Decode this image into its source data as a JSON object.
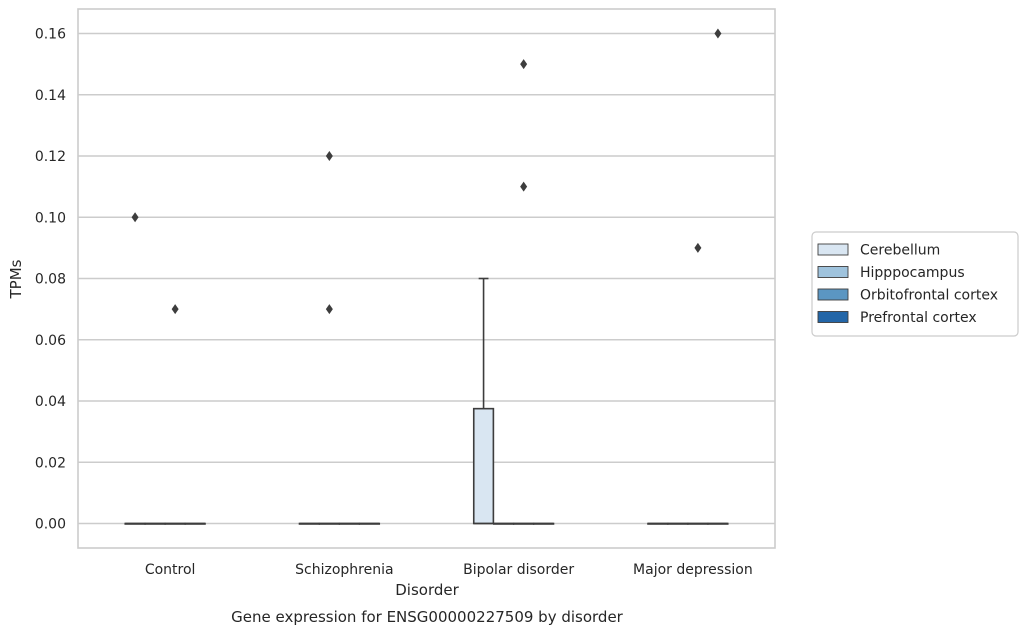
{
  "chart_data": {
    "type": "boxplot",
    "title": "Gene expression for ENSG00000227509 by disorder",
    "xlabel": "Disorder",
    "ylabel": "TPMs",
    "ylim": [
      -0.008,
      0.168
    ],
    "yticks": [
      0.0,
      0.02,
      0.04,
      0.06,
      0.08,
      0.1,
      0.12,
      0.14,
      0.16
    ],
    "ytick_labels": [
      "0.00",
      "0.02",
      "0.04",
      "0.06",
      "0.08",
      "0.10",
      "0.12",
      "0.14",
      "0.16"
    ],
    "grid": true,
    "legend_position": "right",
    "categories": [
      "Control",
      "Schizophrenia",
      "Bipolar disorder",
      "Major depression"
    ],
    "series": [
      {
        "name": "Cerebellum",
        "color": "#d9e6f2",
        "boxes": [
          {
            "q1": 0.0,
            "median": 0.0,
            "q3": 0.0,
            "whisker_low": 0.0,
            "whisker_high": 0.0,
            "outliers": [
              0.1
            ]
          },
          {
            "q1": 0.0,
            "median": 0.0,
            "q3": 0.0,
            "whisker_low": 0.0,
            "whisker_high": 0.0,
            "outliers": []
          },
          {
            "q1": 0.0,
            "median": 0.0,
            "q3": 0.0375,
            "whisker_low": 0.0,
            "whisker_high": 0.08,
            "outliers": []
          },
          {
            "q1": 0.0,
            "median": 0.0,
            "q3": 0.0,
            "whisker_low": 0.0,
            "whisker_high": 0.0,
            "outliers": []
          }
        ]
      },
      {
        "name": "Hipppocampus",
        "color": "#9fc3dd",
        "boxes": [
          {
            "q1": 0.0,
            "median": 0.0,
            "q3": 0.0,
            "whisker_low": 0.0,
            "whisker_high": 0.0,
            "outliers": []
          },
          {
            "q1": 0.0,
            "median": 0.0,
            "q3": 0.0,
            "whisker_low": 0.0,
            "whisker_high": 0.0,
            "outliers": [
              0.12,
              0.07
            ]
          },
          {
            "q1": 0.0,
            "median": 0.0,
            "q3": 0.0,
            "whisker_low": 0.0,
            "whisker_high": 0.0,
            "outliers": []
          },
          {
            "q1": 0.0,
            "median": 0.0,
            "q3": 0.0,
            "whisker_low": 0.0,
            "whisker_high": 0.0,
            "outliers": []
          }
        ]
      },
      {
        "name": "Orbitofrontal cortex",
        "color": "#5b96c2",
        "boxes": [
          {
            "q1": 0.0,
            "median": 0.0,
            "q3": 0.0,
            "whisker_low": 0.0,
            "whisker_high": 0.0,
            "outliers": [
              0.07
            ]
          },
          {
            "q1": 0.0,
            "median": 0.0,
            "q3": 0.0,
            "whisker_low": 0.0,
            "whisker_high": 0.0,
            "outliers": []
          },
          {
            "q1": 0.0,
            "median": 0.0,
            "q3": 0.0,
            "whisker_low": 0.0,
            "whisker_high": 0.0,
            "outliers": [
              0.15,
              0.11
            ]
          },
          {
            "q1": 0.0,
            "median": 0.0,
            "q3": 0.0,
            "whisker_low": 0.0,
            "whisker_high": 0.0,
            "outliers": [
              0.09
            ]
          }
        ]
      },
      {
        "name": "Prefrontal cortex",
        "color": "#2366a8",
        "boxes": [
          {
            "q1": 0.0,
            "median": 0.0,
            "q3": 0.0,
            "whisker_low": 0.0,
            "whisker_high": 0.0,
            "outliers": []
          },
          {
            "q1": 0.0,
            "median": 0.0,
            "q3": 0.0,
            "whisker_low": 0.0,
            "whisker_high": 0.0,
            "outliers": []
          },
          {
            "q1": 0.0,
            "median": 0.0,
            "q3": 0.0,
            "whisker_low": 0.0,
            "whisker_high": 0.0,
            "outliers": []
          },
          {
            "q1": 0.0,
            "median": 0.0,
            "q3": 0.0,
            "whisker_low": 0.0,
            "whisker_high": 0.0,
            "outliers": [
              0.16
            ]
          }
        ]
      }
    ]
  }
}
